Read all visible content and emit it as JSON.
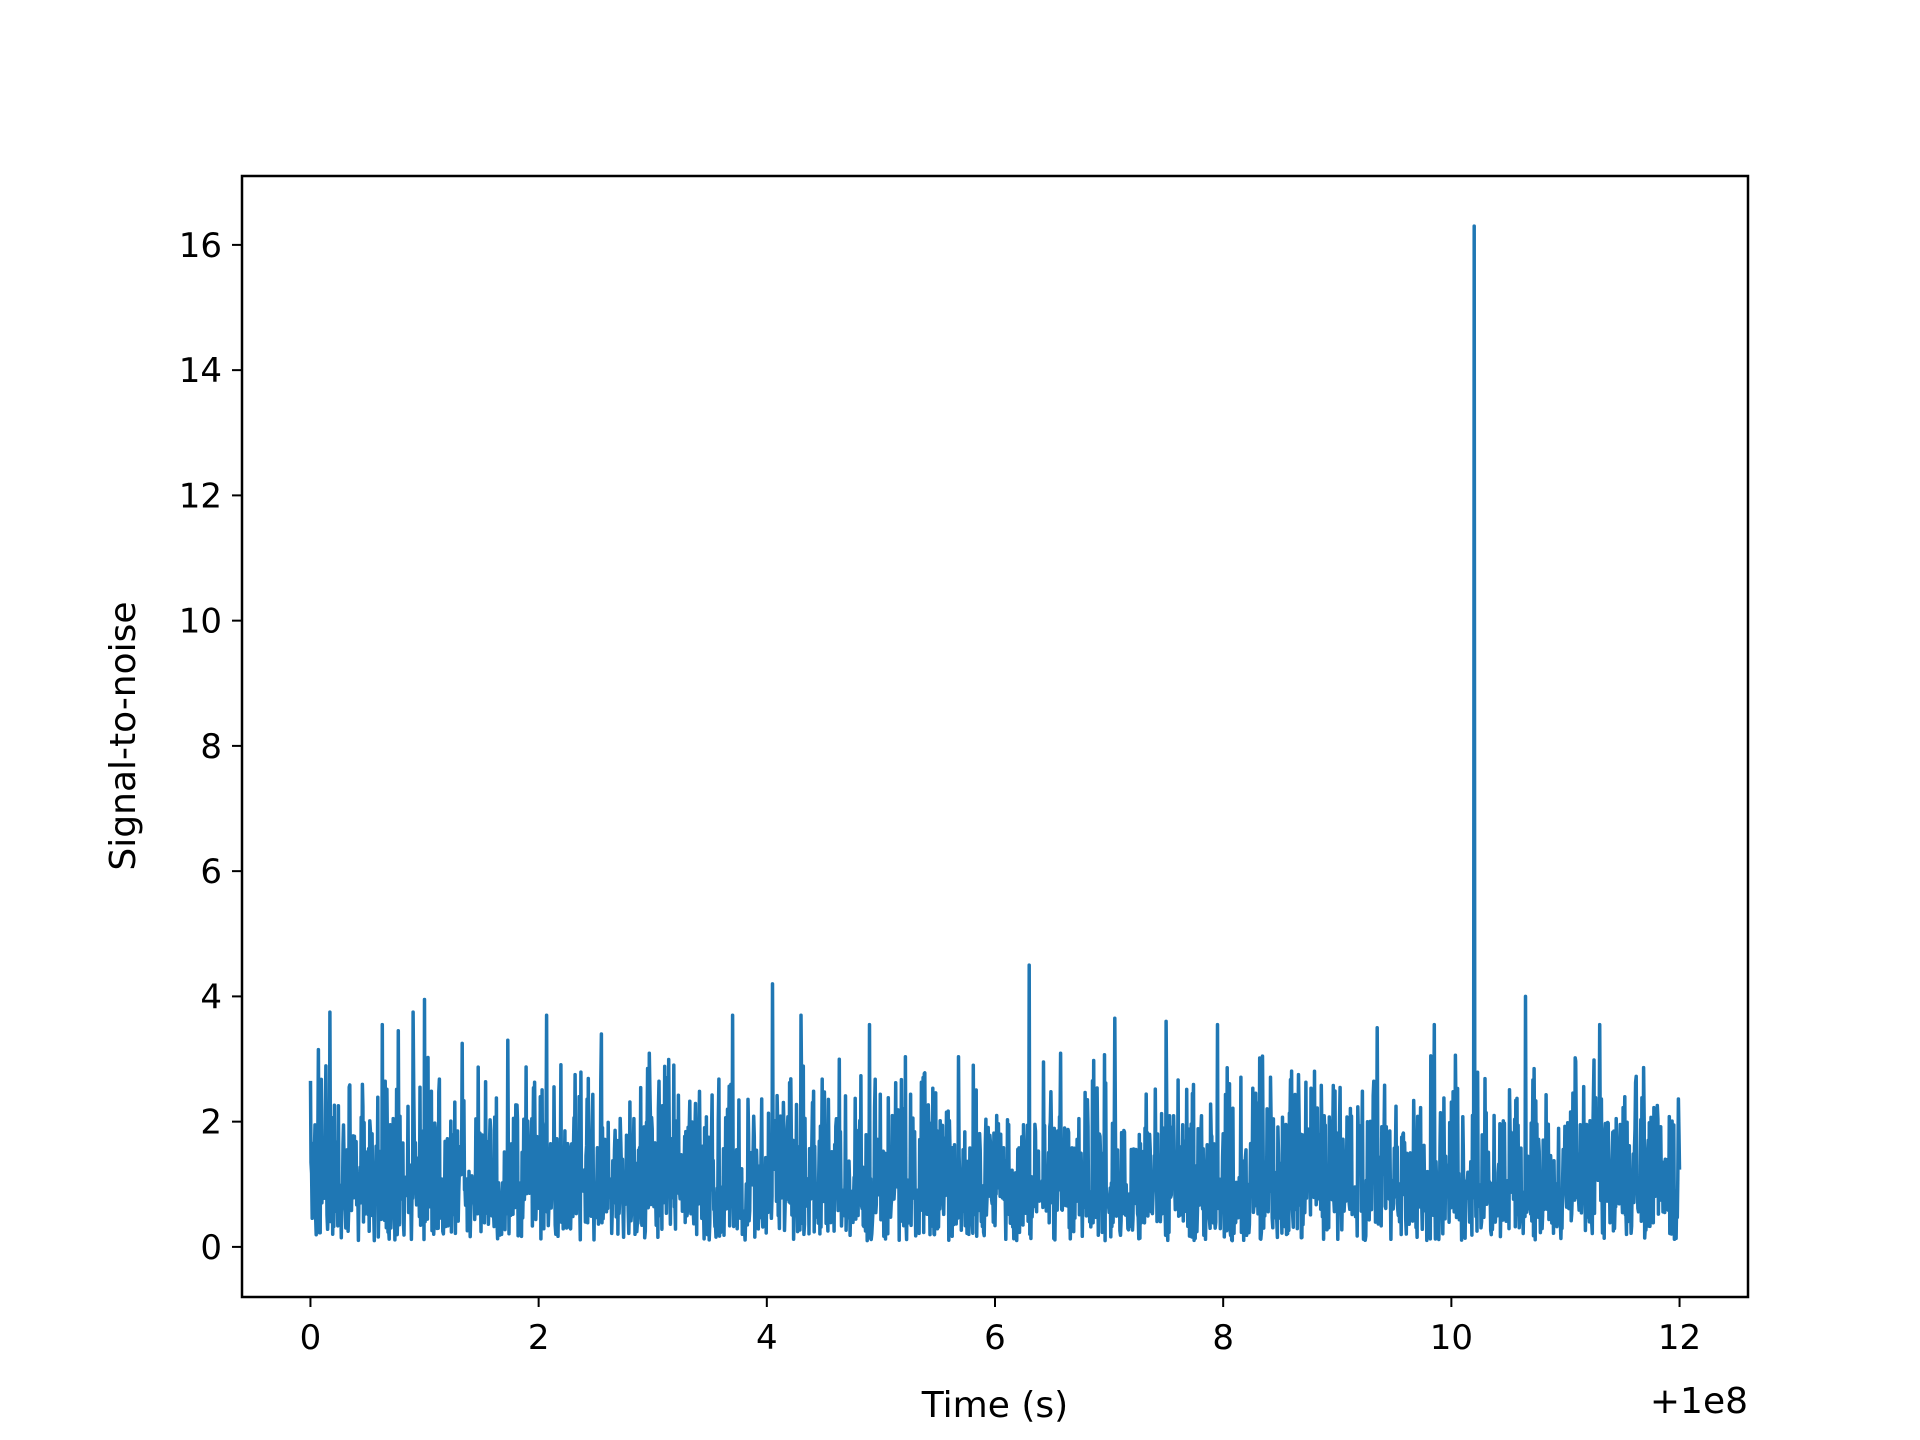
{
  "chart_data": {
    "type": "line",
    "title": "",
    "xlabel": "Time (s)",
    "ylabel": "Signal-to-noise",
    "x_offset_label": "+1e8",
    "xlim": [
      -0.6,
      12.6
    ],
    "ylim": [
      -0.8,
      17.1
    ],
    "x_ticks": [
      0,
      2,
      4,
      6,
      8,
      10,
      12
    ],
    "x_tick_labels": [
      "0",
      "2",
      "4",
      "6",
      "8",
      "10",
      "12"
    ],
    "y_ticks": [
      0,
      2,
      4,
      6,
      8,
      10,
      12,
      14,
      16
    ],
    "y_tick_labels": [
      "0",
      "2",
      "4",
      "6",
      "8",
      "10",
      "12",
      "14",
      "16"
    ],
    "grid": false,
    "legend": false,
    "colors": {
      "line": "#1f77b4",
      "axes": "#000000",
      "background": "#ffffff"
    },
    "series": [
      {
        "x_range": [
          0,
          12
        ],
        "baseline_range": [
          0.05,
          4.0
        ],
        "peaks": [
          {
            "x": 0.0,
            "y": 2.65
          },
          {
            "x": 0.07,
            "y": 3.15
          },
          {
            "x": 0.17,
            "y": 3.75
          },
          {
            "x": 0.63,
            "y": 3.55
          },
          {
            "x": 0.77,
            "y": 3.45
          },
          {
            "x": 0.9,
            "y": 3.75
          },
          {
            "x": 1.0,
            "y": 3.95
          },
          {
            "x": 1.33,
            "y": 3.25
          },
          {
            "x": 1.73,
            "y": 3.3
          },
          {
            "x": 2.07,
            "y": 3.7
          },
          {
            "x": 2.55,
            "y": 3.4
          },
          {
            "x": 3.7,
            "y": 3.7
          },
          {
            "x": 4.05,
            "y": 4.2
          },
          {
            "x": 4.3,
            "y": 3.7
          },
          {
            "x": 4.9,
            "y": 3.55
          },
          {
            "x": 6.3,
            "y": 4.5
          },
          {
            "x": 7.05,
            "y": 3.65
          },
          {
            "x": 7.5,
            "y": 3.6
          },
          {
            "x": 7.95,
            "y": 3.55
          },
          {
            "x": 9.35,
            "y": 3.5
          },
          {
            "x": 9.85,
            "y": 3.55
          },
          {
            "x": 10.2,
            "y": 16.3
          },
          {
            "x": 10.65,
            "y": 4.0
          },
          {
            "x": 11.3,
            "y": 3.55
          }
        ]
      }
    ]
  }
}
